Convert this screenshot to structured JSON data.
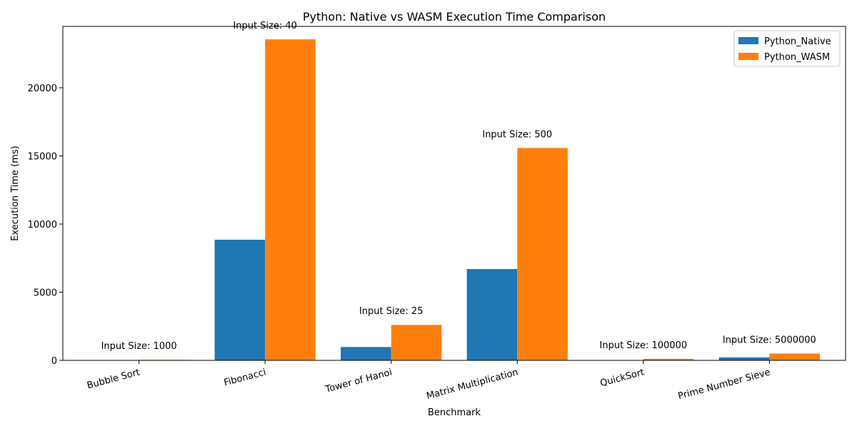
{
  "chart_data": {
    "type": "bar",
    "title": "Python: Native vs WASM Execution Time Comparison",
    "xlabel": "Benchmark",
    "ylabel": "Execution Time (ms)",
    "categories": [
      "Bubble Sort",
      "Fibonacci",
      "Tower of Hanoi",
      "Matrix Multiplication",
      "QuickSort",
      "Prime Number Sieve"
    ],
    "series": [
      {
        "name": "Python_Native",
        "color": "#1f77b4",
        "values": [
          15,
          8850,
          980,
          6700,
          25,
          220
        ]
      },
      {
        "name": "Python_WASM",
        "color": "#ff7f0e",
        "values": [
          40,
          23550,
          2600,
          15580,
          110,
          500
        ]
      }
    ],
    "annotations": [
      "Input Size: 1000",
      "Input Size: 40",
      "Input Size: 25",
      "Input Size: 500",
      "Input Size: 100000",
      "Input Size: 5000000"
    ],
    "ylim": [
      0,
      24500
    ],
    "yticks": [
      0,
      5000,
      10000,
      15000,
      20000
    ],
    "grid": false,
    "legend": "top-right"
  }
}
